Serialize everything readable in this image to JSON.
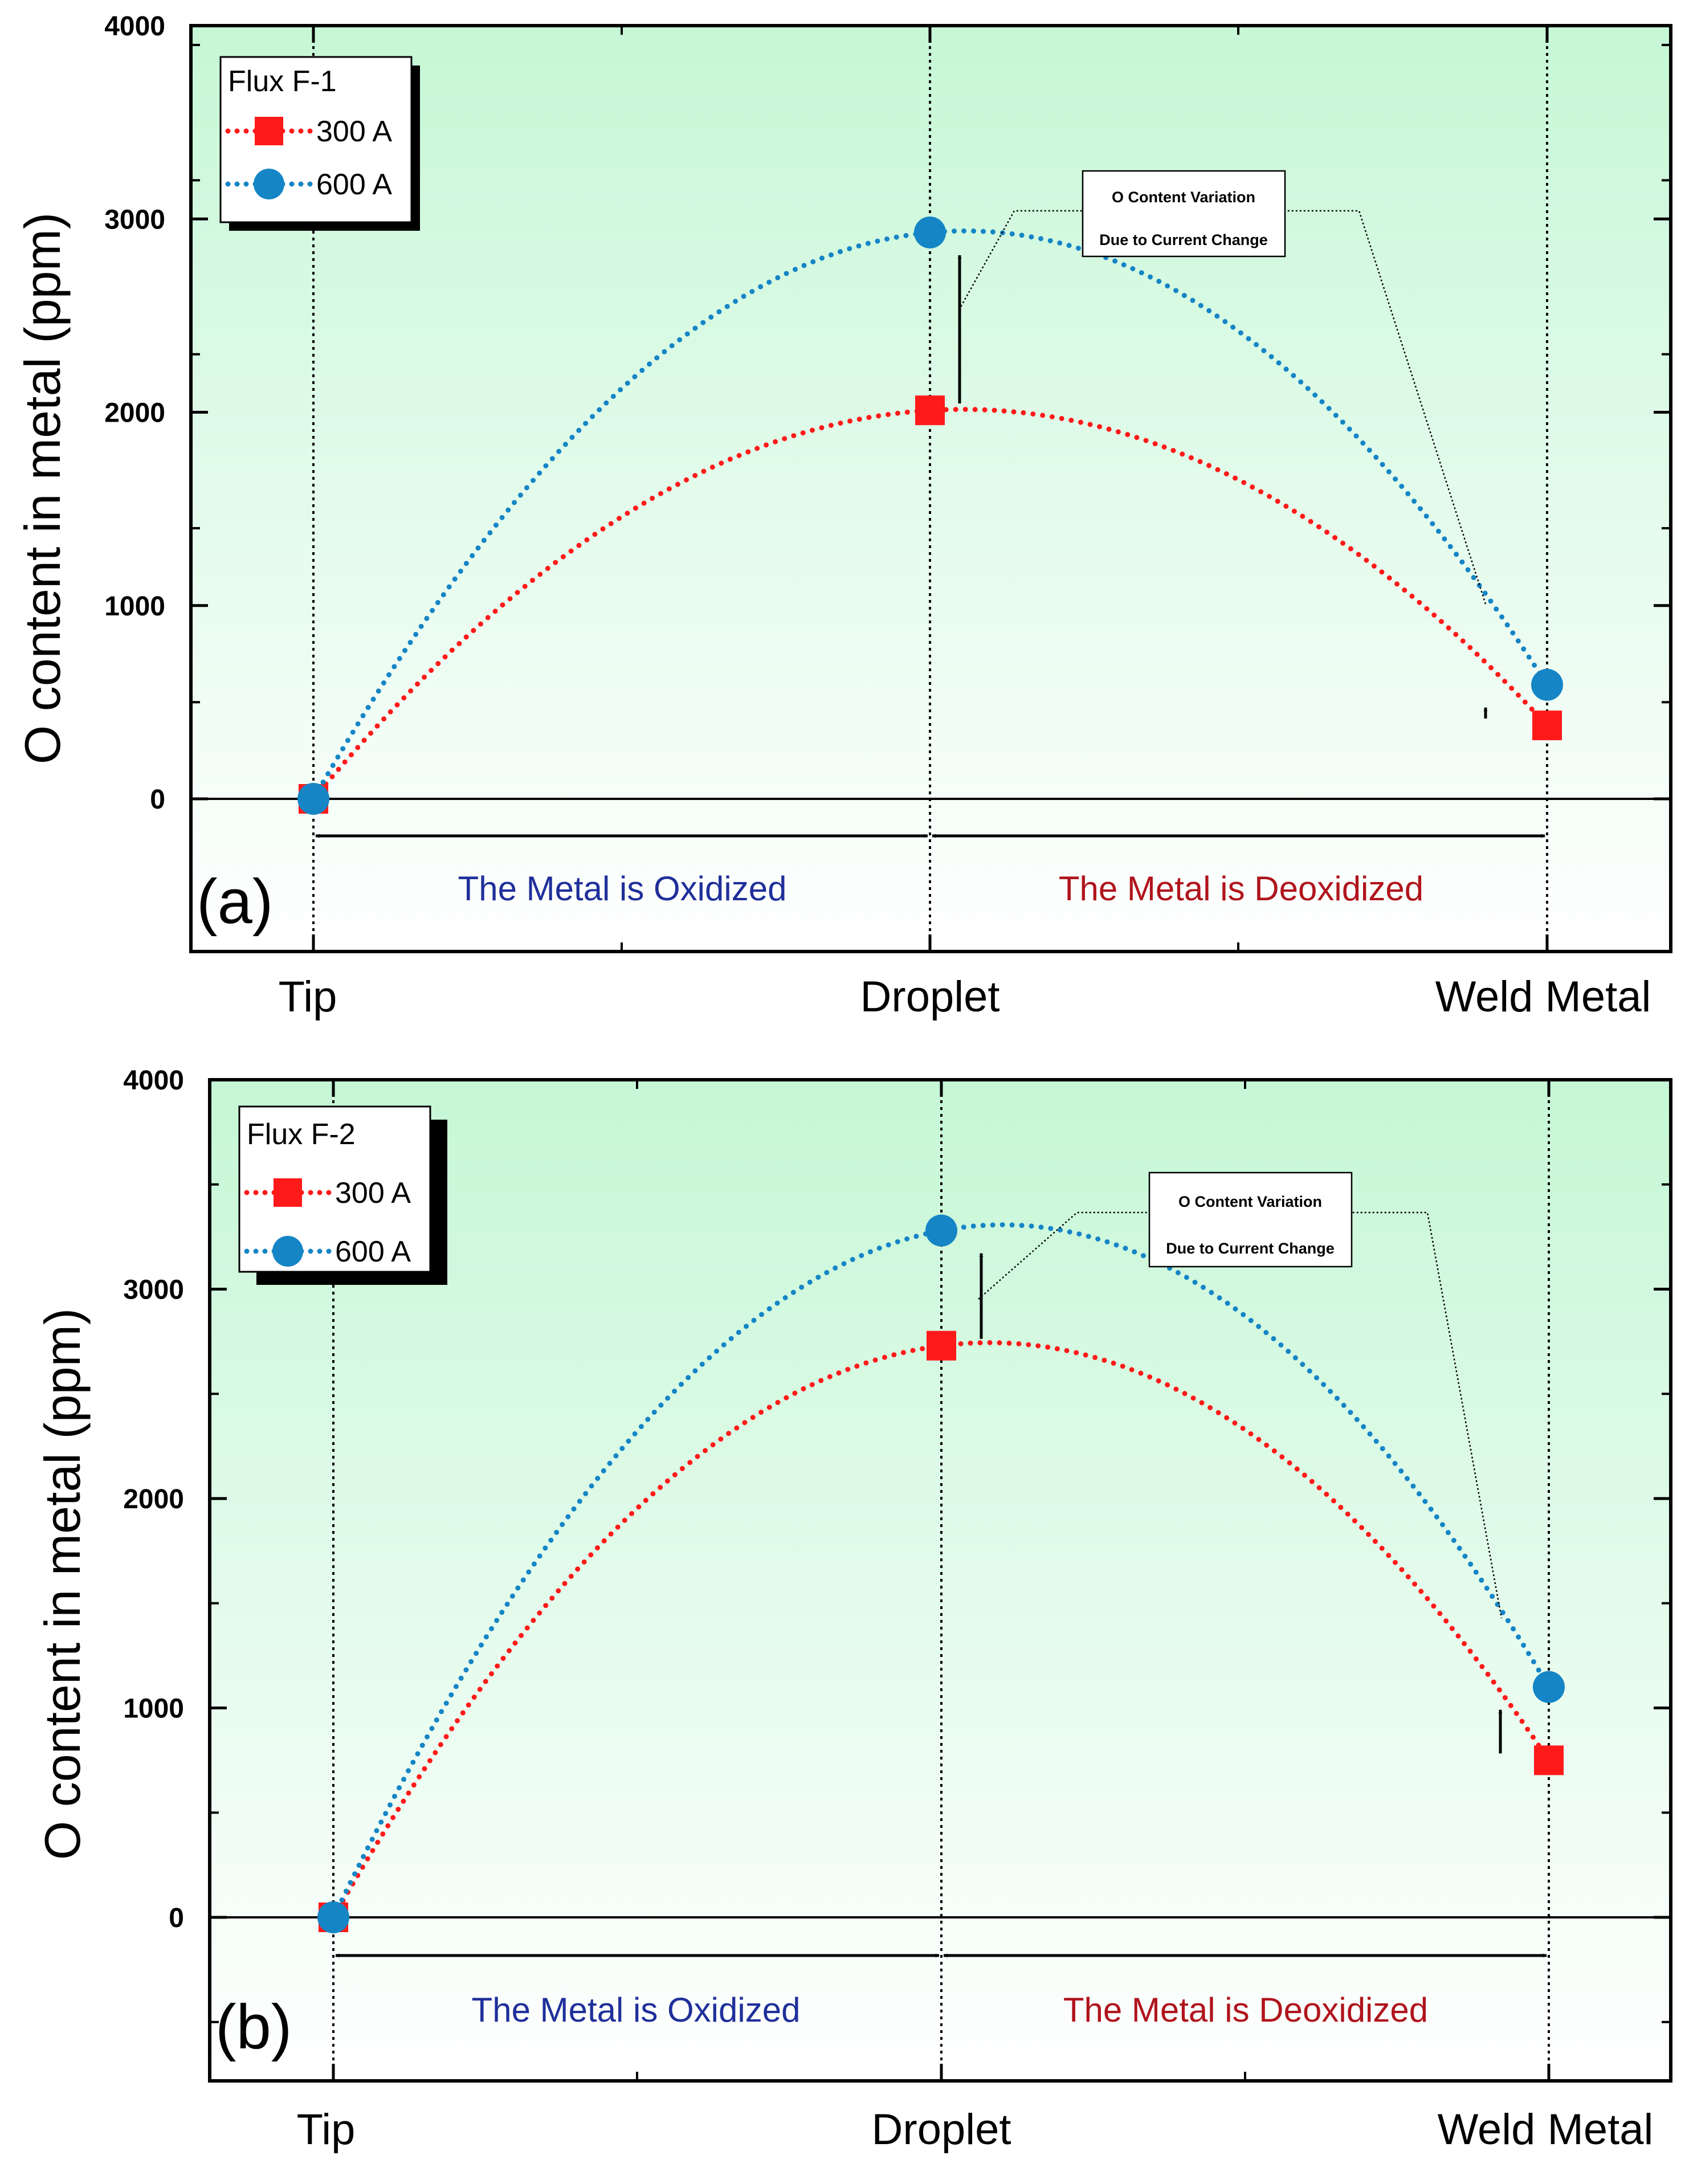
{
  "figure": {
    "shared": {
      "ylabel": "O content in metal (ppm)",
      "yticks": [
        0,
        1000,
        2000,
        3000,
        4000
      ],
      "ylim": [
        -800,
        4000
      ],
      "categories": [
        "Tip",
        "Droplet",
        "Weld Metal"
      ],
      "regions": [
        "The Metal is Oxidized",
        "The Metal is Deoxidized"
      ],
      "annotation": [
        "O Content Variation",
        "Due to Current Change"
      ],
      "colors": {
        "series_300": "#ff1a1a",
        "series_600": "#1585c6",
        "oxidized_text": "#1f2f9a",
        "deoxidized_text": "#b0141c",
        "background_top": "#c6f7d6",
        "background_bottom": "#ffffff"
      }
    }
  },
  "chart_data": [
    {
      "type": "line",
      "panel": "(a)",
      "title": "Flux F-1",
      "xlabel": "",
      "ylabel": "O content in metal (ppm)",
      "ylim": [
        -800,
        4000
      ],
      "categories": [
        "Tip",
        "Droplet",
        "Weld Metal"
      ],
      "series": [
        {
          "name": "300 A",
          "marker": "square",
          "values": [
            0,
            2010,
            380
          ]
        },
        {
          "name": "600 A",
          "marker": "circle",
          "values": [
            0,
            2930,
            590
          ]
        }
      ],
      "legend": {
        "title": "Flux F-1",
        "position": "top-left"
      },
      "annotations": [
        "O Content Variation",
        "Due to Current Change"
      ]
    },
    {
      "type": "line",
      "panel": "(b)",
      "title": "Flux F-2",
      "xlabel": "",
      "ylabel": "O content in metal (ppm)",
      "ylim": [
        -800,
        4000
      ],
      "categories": [
        "Tip",
        "Droplet",
        "Weld Metal"
      ],
      "series": [
        {
          "name": "300 A",
          "marker": "square",
          "values": [
            0,
            2730,
            750
          ]
        },
        {
          "name": "600 A",
          "marker": "circle",
          "values": [
            0,
            3280,
            1100
          ]
        }
      ],
      "legend": {
        "title": "Flux F-2",
        "position": "top-left"
      },
      "annotations": [
        "O Content Variation",
        "Due to Current Change"
      ]
    }
  ]
}
